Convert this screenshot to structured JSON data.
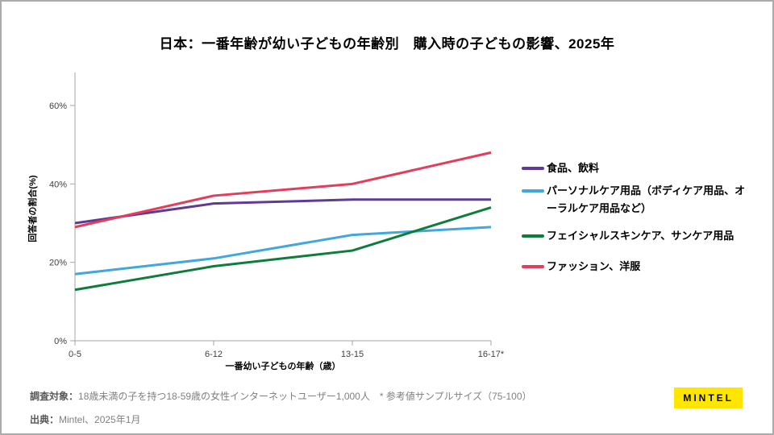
{
  "title": "日本：一番年齢が幼い子どもの年齢別　購入時の子どもの影響、2025年",
  "chart_data": {
    "type": "line",
    "title": "日本：一番年齢が幼い子どもの年齢別　購入時の子どもの影響、2025年",
    "categories": [
      "0-5",
      "6-12",
      "13-15",
      "16-17*"
    ],
    "series": [
      {
        "name": "食品、飲料",
        "color": "#5E3C94",
        "values": [
          30,
          35,
          36,
          36
        ]
      },
      {
        "name": "パーソナルケア用品（ボディケア用品、オーラルケア用品など）",
        "color": "#41A7DC",
        "values": [
          17,
          21,
          27,
          29
        ]
      },
      {
        "name": "フェイシャルスキンケア、サンケア用品",
        "color": "#0E7D3C",
        "values": [
          13,
          19,
          23,
          34
        ]
      },
      {
        "name": "ファッション、洋服",
        "color": "#E23D5B",
        "values": [
          29,
          37,
          40,
          48
        ]
      }
    ],
    "xlabel": "一番幼い子どもの年齢（歳）",
    "ylabel": "回答者の割合(%)",
    "ylim": [
      0,
      68
    ],
    "yticks": [
      0,
      20,
      40,
      60
    ],
    "ytick_suffix": "%",
    "grid": false,
    "legend_position": "right",
    "axis_color": "#A6A6A6",
    "tick_label_color": "#404040"
  },
  "footer": {
    "survey_label": "調査対象：",
    "survey_text": "18歳未満の子を持つ18-59歳の女性インターネットユーザー1,000人　* 参考値サンプルサイズ（75-100）",
    "source_label": "出典：",
    "source_text": "Mintel、2025年1月"
  },
  "logo": {
    "text": "MINTEL",
    "bg": "#FFE600",
    "fg": "#000000"
  }
}
